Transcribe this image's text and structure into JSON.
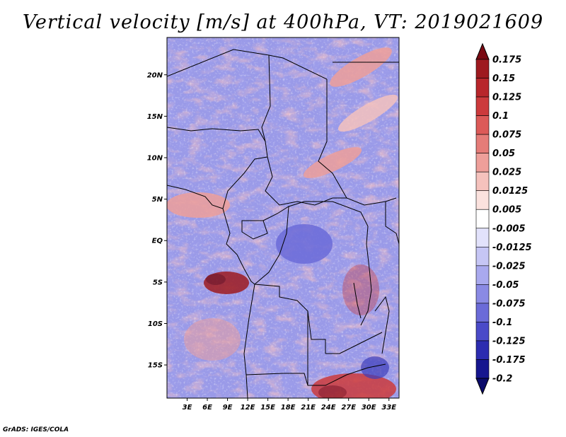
{
  "title": "Vertical velocity [m/s] at 400hPa, VT: 2019021609",
  "credit": "GrADS: IGES/COLA",
  "lat_labels": [
    "20N",
    "15N",
    "10N",
    "5N",
    "EQ",
    "5S",
    "10S",
    "15S"
  ],
  "lon_labels": [
    "3E",
    "6E",
    "9E",
    "12E",
    "15E",
    "18E",
    "21E",
    "24E",
    "27E",
    "30E",
    "33E"
  ],
  "colorbar": {
    "labels": [
      "0.175",
      "0.15",
      "0.125",
      "0.1",
      "0.075",
      "0.05",
      "0.025",
      "0.0125",
      "0.005",
      "-0.005",
      "-0.0125",
      "-0.025",
      "-0.05",
      "-0.075",
      "-0.1",
      "-0.125",
      "-0.175",
      "-0.2"
    ],
    "colors": [
      "#7a0a12",
      "#9e1a1f",
      "#b8262b",
      "#cc3a3c",
      "#dc5a58",
      "#e57c78",
      "#ee9f9a",
      "#f5c2bd",
      "#fbe2de",
      "#ffffff",
      "#e2e2fb",
      "#c6c6f5",
      "#a9a9ee",
      "#8a8ae4",
      "#6b6bd8",
      "#4a4ac8",
      "#2c2cb0",
      "#16168f",
      "#0a0a6a"
    ]
  },
  "map": {
    "lon_range": [
      0,
      34.5
    ],
    "lat_range": [
      -19,
      24.5
    ]
  }
}
